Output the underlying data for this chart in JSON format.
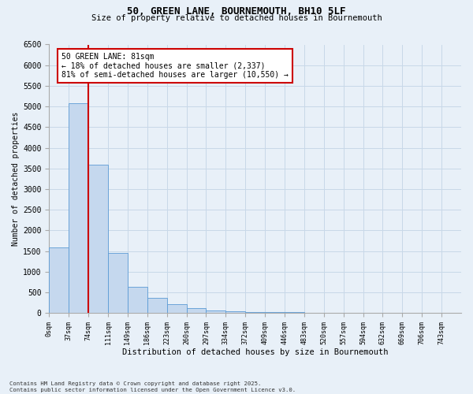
{
  "title_line1": "50, GREEN LANE, BOURNEMOUTH, BH10 5LF",
  "title_line2": "Size of property relative to detached houses in Bournemouth",
  "xlabel": "Distribution of detached houses by size in Bournemouth",
  "ylabel": "Number of detached properties",
  "bin_labels": [
    "0sqm",
    "37sqm",
    "74sqm",
    "111sqm",
    "149sqm",
    "186sqm",
    "223sqm",
    "260sqm",
    "297sqm",
    "334sqm",
    "372sqm",
    "409sqm",
    "446sqm",
    "483sqm",
    "520sqm",
    "557sqm",
    "594sqm",
    "632sqm",
    "669sqm",
    "706sqm",
    "743sqm"
  ],
  "bar_values": [
    1580,
    5080,
    3600,
    1450,
    640,
    375,
    215,
    120,
    70,
    45,
    32,
    22,
    16,
    10,
    7,
    5,
    3,
    2,
    1,
    1,
    0
  ],
  "bar_color": "#c5d8ee",
  "bar_edge_color": "#5b9bd5",
  "vline_x": 2.0,
  "vline_color": "#cc0000",
  "annotation_text": "50 GREEN LANE: 81sqm\n← 18% of detached houses are smaller (2,337)\n81% of semi-detached houses are larger (10,550) →",
  "annotation_box_color": "#ffffff",
  "annotation_box_edge_color": "#cc0000",
  "ylim_max": 6500,
  "ytick_step": 500,
  "grid_color": "#c8d8e8",
  "background_color": "#e8f0f8",
  "footer_line1": "Contains HM Land Registry data © Crown copyright and database right 2025.",
  "footer_line2": "Contains public sector information licensed under the Open Government Licence v3.0."
}
